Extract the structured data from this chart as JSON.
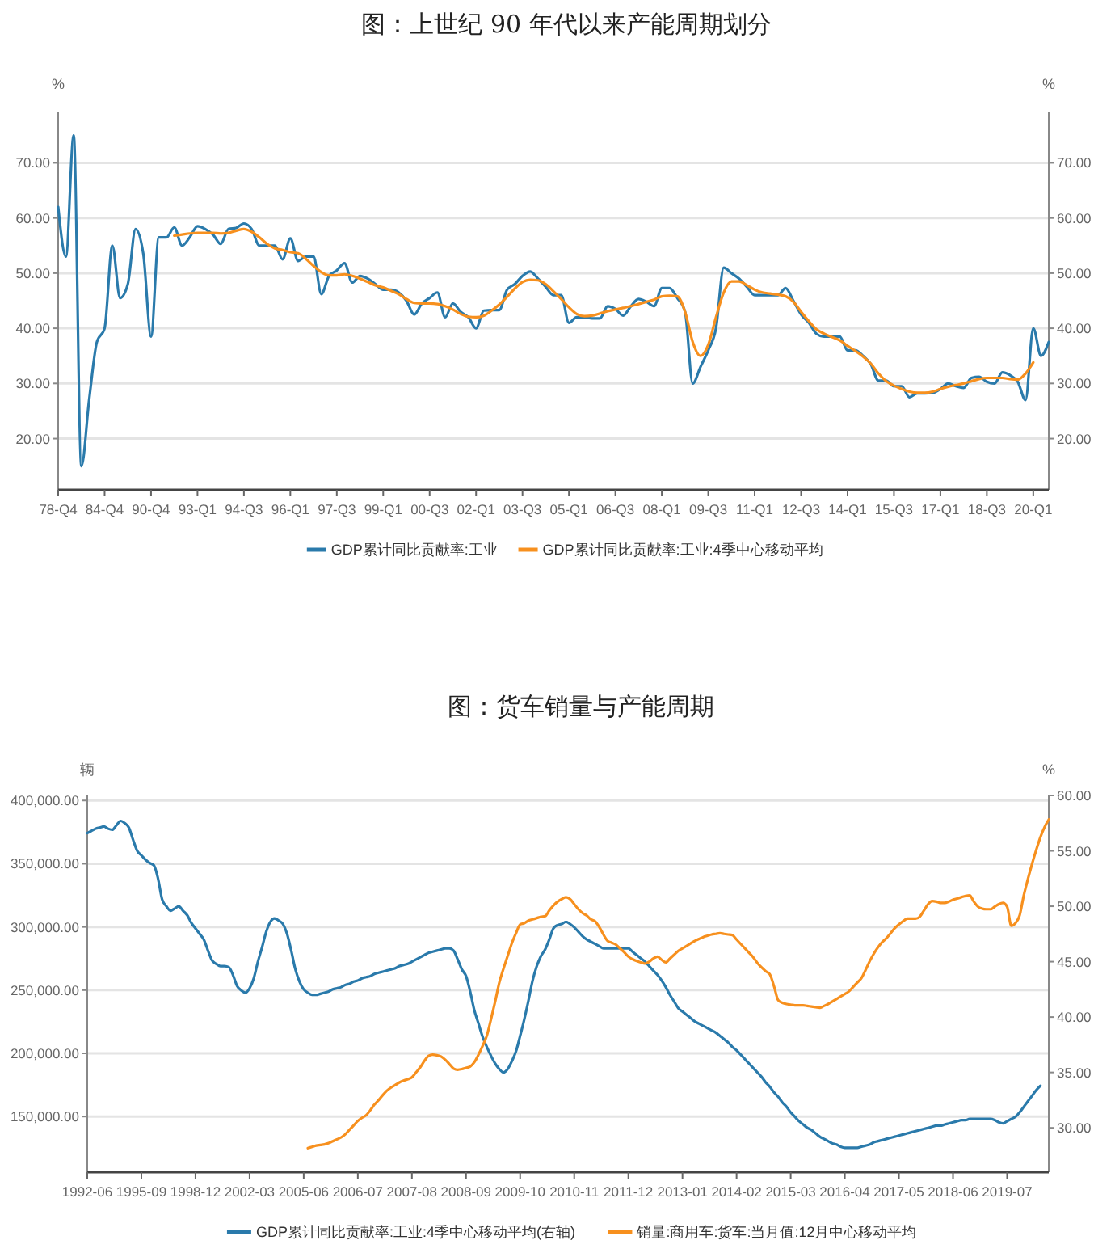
{
  "chart_data": [
    {
      "type": "line",
      "title": "图：上世纪 90 年代以来产能周期划分",
      "ylabel": "%",
      "y2label": "%",
      "categories": [
        "78-Q4",
        null,
        null,
        null,
        null,
        null,
        "84-Q4",
        null,
        null,
        null,
        null,
        null,
        "90-Q4",
        null,
        null,
        null,
        null,
        null,
        "93-Q1",
        null,
        null,
        null,
        null,
        null,
        "94-Q3",
        null,
        null,
        null,
        null,
        null,
        "96-Q1",
        null,
        null,
        null,
        null,
        null,
        "97-Q3",
        null,
        null,
        null,
        null,
        null,
        "99-Q1",
        null,
        null,
        null,
        null,
        null,
        "00-Q3",
        null,
        null,
        null,
        null,
        null,
        "02-Q1",
        null,
        null,
        null,
        null,
        null,
        "03-Q3",
        null,
        null,
        null,
        null,
        null,
        "05-Q1",
        null,
        null,
        null,
        null,
        null,
        "06-Q3",
        null,
        null,
        null,
        null,
        null,
        "08-Q1",
        null,
        null,
        null,
        null,
        null,
        "09-Q3",
        null,
        null,
        null,
        null,
        null,
        "11-Q1",
        null,
        null,
        null,
        null,
        null,
        "12-Q3",
        null,
        null,
        null,
        null,
        null,
        "14-Q1",
        null,
        null,
        null,
        null,
        null,
        "15-Q3",
        null,
        null,
        null,
        null,
        null,
        "17-Q1",
        null,
        null,
        null,
        null,
        null,
        "18-Q3",
        null,
        null,
        null,
        null,
        null,
        "20-Q1",
        null,
        null
      ],
      "series": [
        {
          "name": "GDP累计同比贡献率:工业",
          "color": "#2a7aab",
          "values": [
            62,
            53,
            75,
            15,
            27,
            37.5,
            40,
            55,
            45.5,
            48,
            58,
            53.5,
            38.5,
            56.5,
            56.5,
            58.3,
            55,
            56.5,
            58.5,
            58,
            57,
            55.3,
            58,
            58.2,
            59,
            58,
            55,
            55,
            55,
            52.5,
            56.3,
            52.2,
            53,
            53,
            46.2,
            49.5,
            50.5,
            51.8,
            48.3,
            49.5,
            49,
            48,
            47,
            47,
            46.5,
            45,
            42.5,
            44.5,
            45.5,
            46.5,
            42,
            44.5,
            43,
            42,
            40,
            43.2,
            43.3,
            43.3,
            47,
            48,
            49.5,
            50.3,
            49,
            47.5,
            46,
            46,
            41,
            42,
            42,
            41.8,
            41.8,
            44,
            43.5,
            42.3,
            44,
            45.3,
            44.8,
            44,
            47.3,
            47.3,
            45.5,
            43,
            30,
            33,
            36,
            40,
            51,
            50,
            49,
            47.5,
            46,
            46,
            46,
            46,
            47.3,
            45,
            42.5,
            41,
            39,
            38.5,
            38.5,
            38.5,
            36,
            36,
            35,
            33.5,
            30.5,
            30.5,
            29.5,
            29.5,
            27.5,
            28.2,
            28.2,
            28.3,
            29,
            30,
            29.5,
            29.2,
            31,
            31.2,
            30.3,
            30,
            32,
            31.5,
            30.3,
            27,
            40,
            35,
            37.5
          ]
        },
        {
          "name": "GDP累计同比贡献率:工业:4季中心移动平均",
          "color": "#f7901e",
          "values": [
            null,
            null,
            null,
            null,
            null,
            null,
            null,
            null,
            null,
            null,
            null,
            null,
            null,
            null,
            null,
            56.8,
            57,
            57.2,
            57.3,
            57.3,
            57.3,
            57.2,
            57.3,
            57.7,
            58,
            57.5,
            56.5,
            55.3,
            54.5,
            54.2,
            53.8,
            53.6,
            52.6,
            51.3,
            50.2,
            49.6,
            49.6,
            49.8,
            49.5,
            49,
            48.4,
            47.8,
            47.4,
            46.8,
            46.2,
            45.3,
            44.6,
            44.5,
            44.5,
            44.4,
            44,
            43.4,
            42.6,
            42.1,
            42,
            42.3,
            43.2,
            44.3,
            45.7,
            47.2,
            48.4,
            48.8,
            48.7,
            48,
            46.7,
            45.3,
            43.8,
            42.6,
            42.2,
            42.3,
            42.7,
            43.1,
            43.4,
            43.7,
            44,
            44.4,
            44.8,
            45.2,
            45.8,
            45.9,
            45.8,
            43,
            37.5,
            35,
            37,
            42,
            46.5,
            48.5,
            48.5,
            47.8,
            47,
            46.5,
            46.3,
            46.1,
            45.8,
            44.8,
            43,
            41.3,
            39.8,
            39,
            38.4,
            37.8,
            36.8,
            35.9,
            34.9,
            33.6,
            31.8,
            30.4,
            29.6,
            29,
            28.5,
            28.3,
            28.3,
            28.5,
            29,
            29.4,
            29.7,
            30,
            30.4,
            30.8,
            31,
            31,
            31,
            30.8,
            30.7,
            31.8,
            33.8,
            null,
            null
          ]
        }
      ],
      "ylim": [
        10.7,
        79.3
      ],
      "yticks": [
        {
          "value": 20,
          "label": "20.00"
        },
        {
          "value": 30,
          "label": "30.00"
        },
        {
          "value": 40,
          "label": "40.00"
        },
        {
          "value": 50,
          "label": "50.00"
        },
        {
          "value": 60,
          "label": "60.00"
        },
        {
          "value": 70,
          "label": "70.00"
        }
      ],
      "y2lim": [
        10.7,
        79.3
      ],
      "y2ticks": [
        {
          "value": 20,
          "label": "20.00"
        },
        {
          "value": 30,
          "label": "30.00"
        },
        {
          "value": 40,
          "label": "40.00"
        },
        {
          "value": 50,
          "label": "50.00"
        },
        {
          "value": 60,
          "label": "60.00"
        },
        {
          "value": 70,
          "label": "70.00"
        }
      ],
      "grid": "y",
      "legend": "bottom"
    },
    {
      "type": "line",
      "title": "图：货车销量与产能周期",
      "ylabel": "辆",
      "y2label": "%",
      "categories": [
        "1992-06",
        null,
        null,
        null,
        null,
        null,
        null,
        null,
        null,
        null,
        null,
        null,
        null,
        "1995-09",
        null,
        null,
        null,
        null,
        null,
        null,
        null,
        null,
        null,
        null,
        null,
        null,
        "1998-12",
        null,
        null,
        null,
        null,
        null,
        null,
        null,
        null,
        null,
        null,
        null,
        null,
        "2002-03",
        null,
        null,
        null,
        null,
        null,
        null,
        null,
        null,
        null,
        null,
        null,
        null,
        "2005-06",
        null,
        null,
        null,
        null,
        null,
        null,
        null,
        null,
        null,
        null,
        null,
        null,
        "2006-07",
        null,
        null,
        null,
        null,
        null,
        null,
        null,
        null,
        null,
        null,
        null,
        null,
        "2007-08",
        null,
        null,
        null,
        null,
        null,
        null,
        null,
        null,
        null,
        null,
        null,
        null,
        "2008-09",
        null,
        null,
        null,
        null,
        null,
        null,
        null,
        null,
        null,
        null,
        null,
        null,
        "2009-10",
        null,
        null,
        null,
        null,
        null,
        null,
        null,
        null,
        null,
        null,
        null,
        null,
        "2010-11",
        null,
        null,
        null,
        null,
        null,
        null,
        null,
        null,
        null,
        null,
        null,
        null,
        "2011-12",
        null,
        null,
        null,
        null,
        null,
        null,
        null,
        null,
        null,
        null,
        null,
        null,
        "2013-01",
        null,
        null,
        null,
        null,
        null,
        null,
        null,
        null,
        null,
        null,
        null,
        null,
        "2014-02",
        null,
        null,
        null,
        null,
        null,
        null,
        null,
        null,
        null,
        null,
        null,
        null,
        "2015-03",
        null,
        null,
        null,
        null,
        null,
        null,
        null,
        null,
        null,
        null,
        null,
        null,
        "2016-04",
        null,
        null,
        null,
        null,
        null,
        null,
        null,
        null,
        null,
        null,
        null,
        null,
        "2017-05",
        null,
        null,
        null,
        null,
        null,
        null,
        null,
        null,
        null,
        null,
        null,
        null,
        "2018-06",
        null,
        null,
        null,
        null,
        null,
        null,
        null,
        null,
        null,
        null,
        null,
        null,
        "2019-07",
        null,
        null,
        null,
        null,
        null,
        null,
        null,
        null,
        null,
        null
      ],
      "series": [
        {
          "name": "GDP累计同比贡献率:工业:4季中心移动平均(右轴)",
          "color": "#2a7aab",
          "axis": "y2",
          "values": [
            56.6,
            56.8,
            57.0,
            57.1,
            57.2,
            57.0,
            56.9,
            57.3,
            57.7,
            57.5,
            57.1,
            56.0,
            55.0,
            54.6,
            54.2,
            53.9,
            53.7,
            52.5,
            50.6,
            50.0,
            49.6,
            49.8,
            50.0,
            49.6,
            49.2,
            48.5,
            48.0,
            47.5,
            47.0,
            46.0,
            45.1,
            44.8,
            44.6,
            44.6,
            44.5,
            43.8,
            42.8,
            42.4,
            42.2,
            42.6,
            43.5,
            45.0,
            46.3,
            47.7,
            48.6,
            48.9,
            48.7,
            48.4,
            47.5,
            46.0,
            44.3,
            43.2,
            42.5,
            42.2,
            42.0,
            42.0,
            42.1,
            42.2,
            42.3,
            42.5,
            42.6,
            42.7,
            42.9,
            43.0,
            43.2,
            43.3,
            43.5,
            43.6,
            43.7,
            43.9,
            44.0,
            44.1,
            44.2,
            44.3,
            44.4,
            44.6,
            44.7,
            44.8,
            45.0,
            45.2,
            45.4,
            45.6,
            45.8,
            45.9,
            46.0,
            46.1,
            46.2,
            46.2,
            46.0,
            45.2,
            44.3,
            43.7,
            42.3,
            40.6,
            39.4,
            38.2,
            37.3,
            36.5,
            35.8,
            35.3,
            35.0,
            35.3,
            36.0,
            36.9,
            38.3,
            39.8,
            41.5,
            43.3,
            44.6,
            45.5,
            46.1,
            47.0,
            48.0,
            48.3,
            48.4,
            48.6,
            48.4,
            48.1,
            47.7,
            47.3,
            47.0,
            46.8,
            46.6,
            46.4,
            46.2,
            46.2,
            46.2,
            46.2,
            46.2,
            46.2,
            46.2,
            45.9,
            45.6,
            45.3,
            45.0,
            44.6,
            44.2,
            43.8,
            43.3,
            42.7,
            42.0,
            41.4,
            40.8,
            40.5,
            40.2,
            39.9,
            39.6,
            39.4,
            39.2,
            39.0,
            38.8,
            38.6,
            38.3,
            38.0,
            37.7,
            37.3,
            37.0,
            36.6,
            36.2,
            35.8,
            35.4,
            35.0,
            34.6,
            34.1,
            33.7,
            33.2,
            32.8,
            32.3,
            31.9,
            31.4,
            31.0,
            30.6,
            30.3,
            30.0,
            29.8,
            29.5,
            29.2,
            29.0,
            28.8,
            28.6,
            28.5,
            28.3,
            28.2,
            28.2,
            28.2,
            28.2,
            28.3,
            28.4,
            28.5,
            28.7,
            28.8,
            28.9,
            29.0,
            29.1,
            29.2,
            29.3,
            29.4,
            29.5,
            29.6,
            29.7,
            29.8,
            29.9,
            30.0,
            30.1,
            30.2,
            30.2,
            30.3,
            30.4,
            30.5,
            30.6,
            30.7,
            30.7,
            30.8,
            30.8,
            30.8,
            30.8,
            30.8,
            30.8,
            30.7,
            30.5,
            30.4,
            30.6,
            30.8,
            31.0,
            31.4,
            31.9,
            32.4,
            32.9,
            33.4,
            33.8,
            null,
            null
          ]
        },
        {
          "name": "销量:商用车:货车:当月值:12月中心移动平均",
          "color": "#f7901e",
          "values": [
            null,
            null,
            null,
            null,
            null,
            null,
            null,
            null,
            null,
            null,
            null,
            null,
            null,
            null,
            null,
            null,
            null,
            null,
            null,
            null,
            null,
            null,
            null,
            null,
            null,
            null,
            null,
            null,
            null,
            null,
            null,
            null,
            null,
            null,
            null,
            null,
            null,
            null,
            null,
            null,
            null,
            null,
            null,
            null,
            null,
            null,
            null,
            null,
            null,
            null,
            null,
            null,
            null,
            125000,
            126000,
            127000,
            127500,
            128000,
            129000,
            130500,
            132000,
            133500,
            136000,
            139500,
            143000,
            146500,
            149000,
            151000,
            155000,
            159500,
            163000,
            167000,
            170500,
            173000,
            175000,
            177000,
            178500,
            179500,
            181000,
            185000,
            189000,
            194000,
            198000,
            199000,
            198500,
            197500,
            195000,
            191500,
            188000,
            187000,
            187500,
            188500,
            189500,
            193000,
            199000,
            206000,
            214000,
            227000,
            241000,
            256000,
            267000,
            277000,
            287000,
            295000,
            302000,
            303000,
            305000,
            306000,
            307000,
            308000,
            308500,
            313000,
            317000,
            320000,
            322000,
            323500,
            322000,
            318000,
            314000,
            311000,
            309000,
            306000,
            304500,
            300000,
            294000,
            289000,
            287500,
            286000,
            283000,
            280000,
            276500,
            274500,
            273000,
            272000,
            271000,
            272500,
            275000,
            276500,
            274000,
            272000,
            275000,
            278000,
            281000,
            283000,
            285000,
            287000,
            289000,
            290500,
            292000,
            293000,
            294000,
            294500,
            295000,
            294500,
            294000,
            293500,
            290000,
            286500,
            283000,
            279500,
            276000,
            271500,
            268000,
            265000,
            262500,
            253000,
            242000,
            240000,
            239000,
            238500,
            238000,
            238000,
            238000,
            237500,
            237000,
            236500,
            236000,
            237500,
            239000,
            241000,
            243000,
            245000,
            247000,
            249000,
            252500,
            256000,
            259500,
            266000,
            273000,
            279000,
            284000,
            288000,
            291000,
            295000,
            299000,
            302000,
            304500,
            306500,
            306500,
            306500,
            308000,
            313000,
            318000,
            320500,
            320000,
            319000,
            319000,
            320000,
            321500,
            322500,
            323500,
            324500,
            325000,
            320000,
            316000,
            314500,
            314000,
            314000,
            316000,
            318000,
            319000,
            316000,
            301000,
            303000,
            309000,
            325000,
            338000,
            350000,
            361000,
            371000,
            379000,
            385000
          ]
        }
      ],
      "ylim": [
        106000,
        404000
      ],
      "yticks": [
        {
          "value": 150000,
          "label": "150,000.00"
        },
        {
          "value": 200000,
          "label": "200,000.00"
        },
        {
          "value": 250000,
          "label": "250,000.00"
        },
        {
          "value": 300000,
          "label": "300,000.00"
        },
        {
          "value": 350000,
          "label": "350,000.00"
        },
        {
          "value": 400000,
          "label": "400,000.00"
        }
      ],
      "y2lim": [
        26,
        60
      ],
      "y2ticks": [
        {
          "value": 30,
          "label": "30.00"
        },
        {
          "value": 35,
          "label": "35.00"
        },
        {
          "value": 40,
          "label": "40.00"
        },
        {
          "value": 45,
          "label": "45.00"
        },
        {
          "value": 50,
          "label": "50.00"
        },
        {
          "value": 55,
          "label": "55.00"
        },
        {
          "value": 60,
          "label": "60.00"
        }
      ],
      "grid": "y",
      "legend": "bottom"
    }
  ]
}
